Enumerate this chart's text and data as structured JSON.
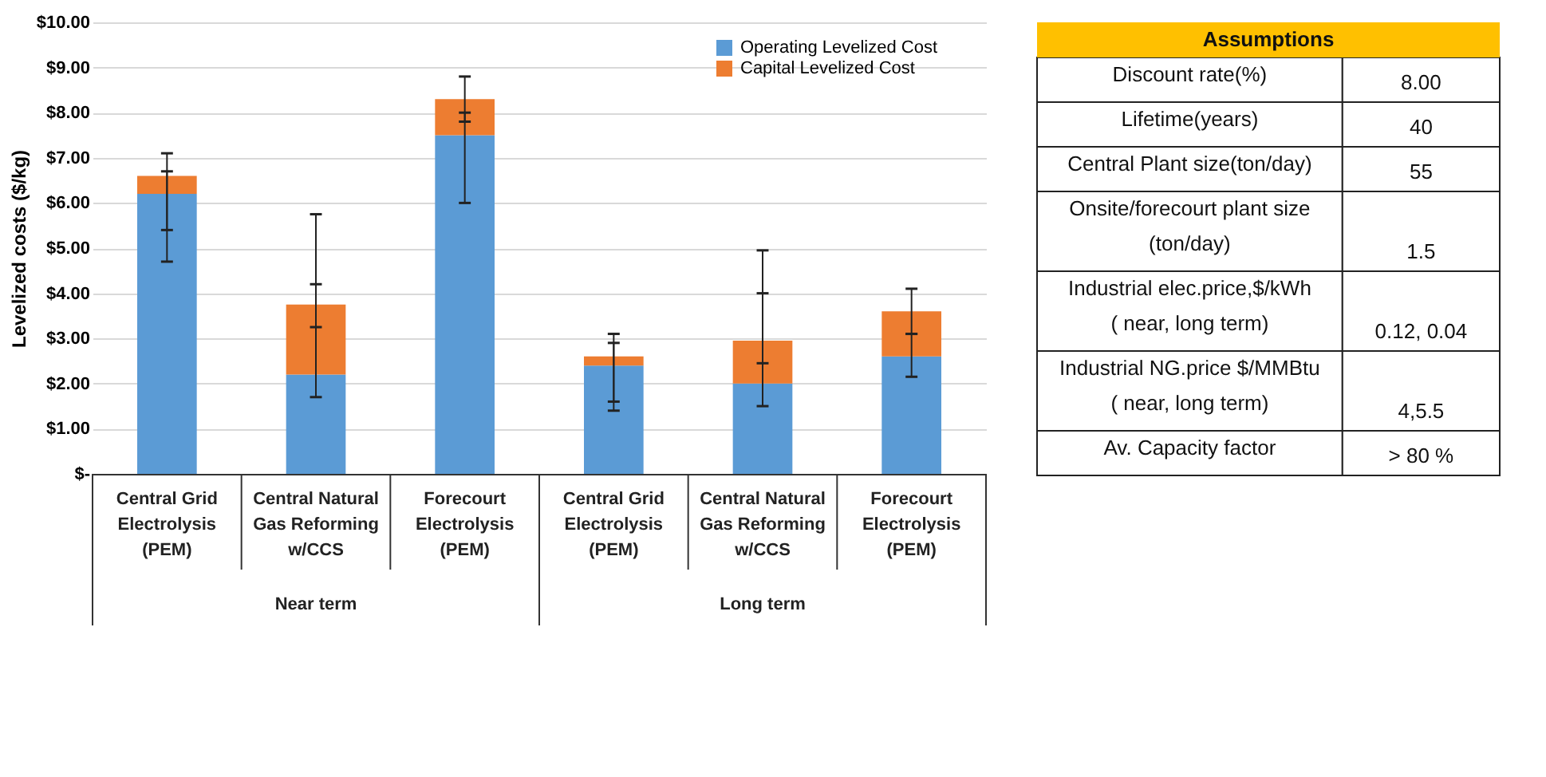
{
  "chart_data": [
    {
      "type": "bar",
      "stacked": true,
      "ylabel": "Levelized costs ($/kg)",
      "categories": [
        "Central Grid Electrolysis (PEM)",
        "Central Natural Gas Reforming w/CCS",
        "Forecourt Electrolysis (PEM)",
        "Central Grid Electrolysis (PEM)",
        "Central Natural Gas Reforming w/CCS",
        "Forecourt Electrolysis (PEM)"
      ],
      "annotations": [
        "Near term",
        "Long term"
      ],
      "series": [
        {
          "name": "Operating Levelized Cost",
          "color": "#5b9bd5",
          "values": [
            6.2,
            2.2,
            7.5,
            2.4,
            2.0,
            2.6
          ],
          "errors": [
            [
              4.7,
              6.7
            ],
            [
              1.7,
              4.2
            ],
            [
              6.0,
              8.0
            ],
            [
              1.4,
              2.9
            ],
            [
              1.5,
              4.0
            ],
            [
              2.15,
              3.1
            ]
          ]
        },
        {
          "name": "Capital Levelized Cost",
          "color": "#ed7d31",
          "values": [
            0.4,
            1.55,
            0.8,
            0.2,
            0.95,
            1.0
          ],
          "errors": [
            [
              5.4,
              7.1
            ],
            [
              3.25,
              5.75
            ],
            [
              7.8,
              8.8
            ],
            [
              1.6,
              3.1
            ],
            [
              2.45,
              4.95
            ],
            [
              3.1,
              4.1
            ]
          ]
        }
      ],
      "ylim": [
        0,
        10
      ],
      "yticks": [
        {
          "value": 0,
          "label": "$-"
        },
        {
          "value": 1,
          "label": "$1.00"
        },
        {
          "value": 2,
          "label": "$2.00"
        },
        {
          "value": 3,
          "label": "$3.00"
        },
        {
          "value": 4,
          "label": "$4.00"
        },
        {
          "value": 5,
          "label": "$5.00"
        },
        {
          "value": 6,
          "label": "$6.00"
        },
        {
          "value": 7,
          "label": "$7.00"
        },
        {
          "value": 8,
          "label": "$8.00"
        },
        {
          "value": 9,
          "label": "$9.00"
        },
        {
          "value": 10,
          "label": "$10.00"
        }
      ],
      "grid": "y",
      "legend": "top right"
    },
    {
      "type": "other",
      "title": "Assumptions",
      "y_categories": [
        "Discount rate(%)",
        "Lifetime(years)",
        "Central Plant size(ton/day)",
        "Onsite/forecourt plant size (ton/day)",
        "Industrial elec.price,$/kWh ( near, long term)",
        "Industrial NG.price $/MMBtu ( near, long term)",
        "Av. Capacity factor"
      ],
      "cell_labels": [
        [
          "8.00"
        ],
        [
          "40"
        ],
        [
          "55"
        ],
        [
          "1.5"
        ],
        [
          "0.12, 0.04"
        ],
        [
          "4,5.5"
        ],
        [
          "> 80 %"
        ]
      ]
    }
  ]
}
